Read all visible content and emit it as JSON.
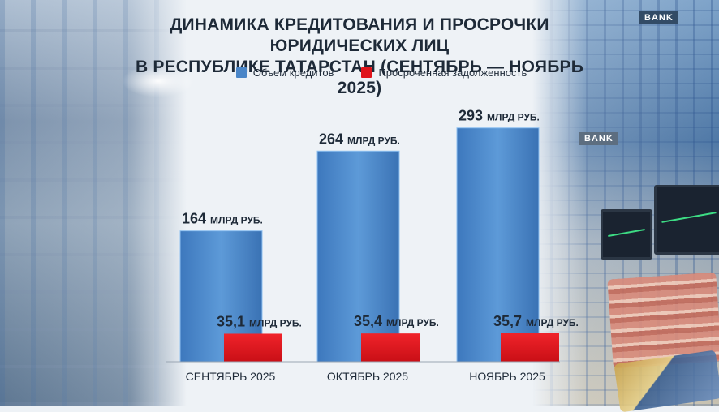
{
  "title_line1": "ДИНАМИКА КРЕДИТОВАНИЯ И ПРОСРОЧКИ ЮРИДИЧЕСКИХ ЛИЦ",
  "title_line2": "В РЕСПУБЛИКЕ ТАТАРСТАН (СЕНТЯБРЬ — НОЯБРЬ 2025)",
  "background": {
    "bank_sign_top": "BANK",
    "bank_sign_mid": "BANK"
  },
  "chart_data": {
    "type": "bar",
    "title": "ДИНАМИКА КРЕДИТОВАНИЯ И ПРОСРОЧКИ ЮРИДИЧЕСКИХ ЛИЦ В РЕСПУБЛИКЕ ТАТАРСТАН (СЕНТЯБРЬ — НОЯБРЬ 2025)",
    "categories": [
      "СЕНТЯБРЬ 2025",
      "ОКТЯБРЬ 2025",
      "НОЯБРЬ 2025"
    ],
    "unit": "МЛРД РУБ.",
    "series": [
      {
        "name": "Объем кредитов",
        "color": "#4a86c8",
        "values": [
          164,
          264,
          293
        ],
        "labels": [
          "164",
          "264",
          "293"
        ]
      },
      {
        "name": "Просроченная задолженность",
        "color": "#e0141b",
        "values": [
          35.1,
          35.4,
          35.7
        ],
        "labels": [
          "35,1",
          "35,4",
          "35,7"
        ]
      }
    ],
    "ylim": [
      0,
      310
    ],
    "legend": "top-center",
    "grid": false
  }
}
